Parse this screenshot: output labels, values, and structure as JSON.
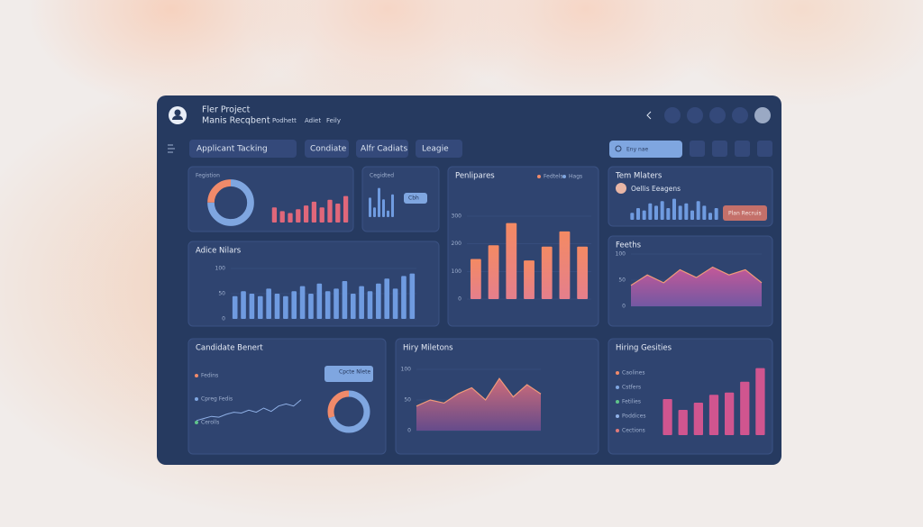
{
  "header": {
    "title": "Fler Project",
    "subtitle": "Manis Recqbent",
    "nav": [
      "Podhett",
      "Adiet",
      "Feily"
    ]
  },
  "toolbar": {
    "dropdowns": [
      "Applicant Tacking",
      "Condiate",
      "Alfr Cadiats",
      "Leagie"
    ],
    "search": "Eny nae"
  },
  "panels": [
    {
      "title": "Fegistion",
      "donut": [
        75,
        25
      ],
      "values": [
        40,
        30,
        25,
        35,
        45,
        55,
        40,
        60,
        50,
        70
      ],
      "ylim": [
        0,
        100
      ],
      "color": "#e0677a"
    },
    {
      "title": "Cegidted",
      "tooltip": "Cbh",
      "values": [
        60,
        30,
        90,
        55,
        20,
        70
      ],
      "ylim": [
        0,
        100
      ],
      "color": "#6f9be0"
    },
    {
      "title": "Penlipares",
      "legend": [
        "Fedtels",
        "Hags"
      ],
      "values": [
        145,
        195,
        275,
        140,
        190,
        245,
        190
      ],
      "ylim": [
        0,
        300
      ],
      "yticks": [
        0,
        100,
        200,
        300
      ],
      "color": "#f08a6a"
    },
    {
      "title": "Tem Mlaters",
      "person": "Oellis Eeagens",
      "button": "Plan Recruis",
      "values": [
        30,
        50,
        40,
        70,
        60,
        80,
        50,
        90,
        60,
        70,
        40,
        80,
        60,
        30,
        50
      ],
      "ylim": [
        0,
        100
      ],
      "color": "#6f9be0"
    },
    {
      "title": "Adice Nilars",
      "values": [
        45,
        55,
        50,
        45,
        60,
        50,
        45,
        55,
        65,
        50,
        70,
        55,
        60,
        75,
        50,
        65,
        55,
        70,
        80,
        60,
        85,
        90
      ],
      "ylim": [
        0,
        100
      ],
      "yticks": [
        0,
        50,
        100
      ],
      "color": "#6f9be0"
    },
    {
      "title": "Feeths",
      "area": [
        40,
        60,
        45,
        70,
        55,
        75,
        60,
        70,
        45
      ],
      "ylim": [
        0,
        100
      ],
      "yticks": [
        0,
        50,
        100
      ],
      "color": "#c7609c"
    },
    {
      "title": "Candidate Benert",
      "legend": [
        "Fedins",
        "Cpreg Fedis",
        "Cerolls"
      ],
      "tooltip": "Cpcte Nlete",
      "line": [
        20,
        25,
        30,
        28,
        35,
        40,
        38,
        45,
        40,
        50,
        42,
        55,
        60,
        55,
        70
      ],
      "ylim": [
        0,
        100
      ],
      "donut": [
        70,
        30
      ],
      "color": "#8fb0e6"
    },
    {
      "title": "Hiry Miletons",
      "area": [
        40,
        50,
        45,
        60,
        70,
        50,
        85,
        55,
        75,
        60
      ],
      "ylim": [
        0,
        100
      ],
      "yticks": [
        0,
        50,
        100
      ],
      "color": "#e07a7a"
    },
    {
      "title": "Hiring Gesities",
      "legend": [
        "Caolines",
        "Cstfers",
        "Fetilies",
        "Poddices",
        "Cections"
      ],
      "values": [
        50,
        35,
        45,
        56,
        59,
        74,
        93
      ],
      "ylim": [
        0,
        100
      ],
      "color": "#d0558f"
    }
  ]
}
